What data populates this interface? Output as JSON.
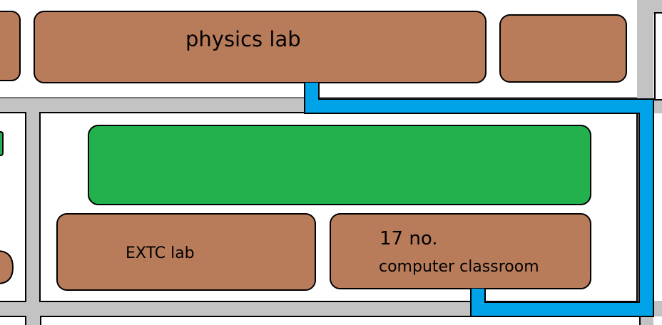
{
  "colors": {
    "building": "#b97c5b",
    "green_area": "#22b14c",
    "road": "#c3c3c3",
    "route": "#00a2e8",
    "outline": "#000000",
    "background": "#ffffff"
  },
  "buildings": {
    "physics_lab": "physics lab",
    "extc_lab": "EXTC lab",
    "computer_classroom_number": "17 no.",
    "computer_classroom_name": "computer classroom"
  },
  "icons": {
    "route": "route-path-line",
    "green_area": "garden-lawn"
  }
}
